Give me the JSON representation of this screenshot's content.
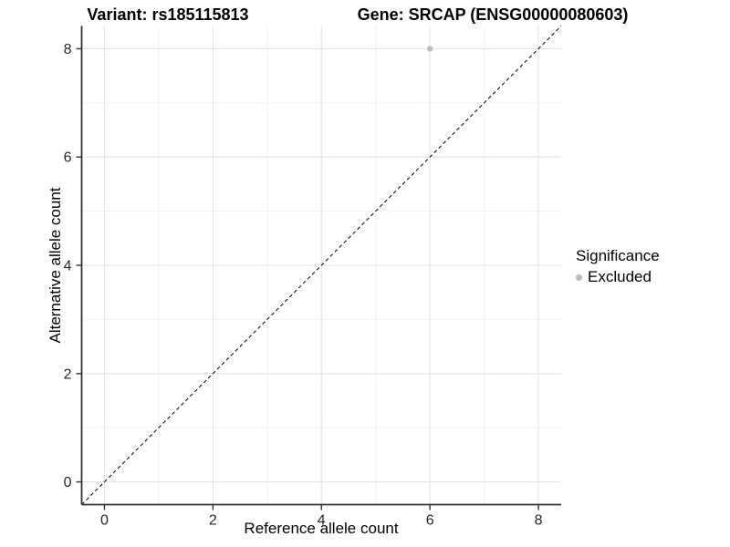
{
  "header": {
    "variant_title": "Variant: rs185115813",
    "gene_title": "Gene: SRCAP (ENSG00000080603)"
  },
  "axes": {
    "x_label": "Reference allele count",
    "y_label": "Alternative allele count"
  },
  "legend": {
    "title": "Significance",
    "items": [
      {
        "label": "Excluded",
        "color": "#bdbdbd"
      }
    ]
  },
  "chart_data": {
    "type": "scatter",
    "title": "Variant: rs185115813 | Gene: SRCAP (ENSG00000080603)",
    "xlabel": "Reference allele count",
    "ylabel": "Alternative allele count",
    "xlim": [
      -0.42,
      8.42
    ],
    "ylim": [
      -0.42,
      8.42
    ],
    "xticks": [
      0,
      2,
      4,
      6,
      8
    ],
    "yticks": [
      0,
      2,
      4,
      6,
      8
    ],
    "minor_xticks": [
      1,
      3,
      5,
      7
    ],
    "minor_yticks": [
      1,
      3,
      5,
      7
    ],
    "grid": true,
    "legend_position": "right",
    "series": [
      {
        "name": "Excluded",
        "color": "#bdbdbd",
        "points": [
          {
            "x": 6,
            "y": 8
          }
        ]
      }
    ],
    "reference_line": {
      "type": "identity y = x",
      "style": "dashed",
      "color": "#000000",
      "from": [
        -0.42,
        -0.42
      ],
      "to": [
        8.42,
        8.42
      ]
    }
  },
  "colors": {
    "background": "#ffffff",
    "grid_major": "#e3e3e3",
    "grid_minor": "#f2f2f2",
    "axis_line": "#333333",
    "tick_text": "#262626",
    "point": "#bdbdbd",
    "title_text": "#000000"
  }
}
